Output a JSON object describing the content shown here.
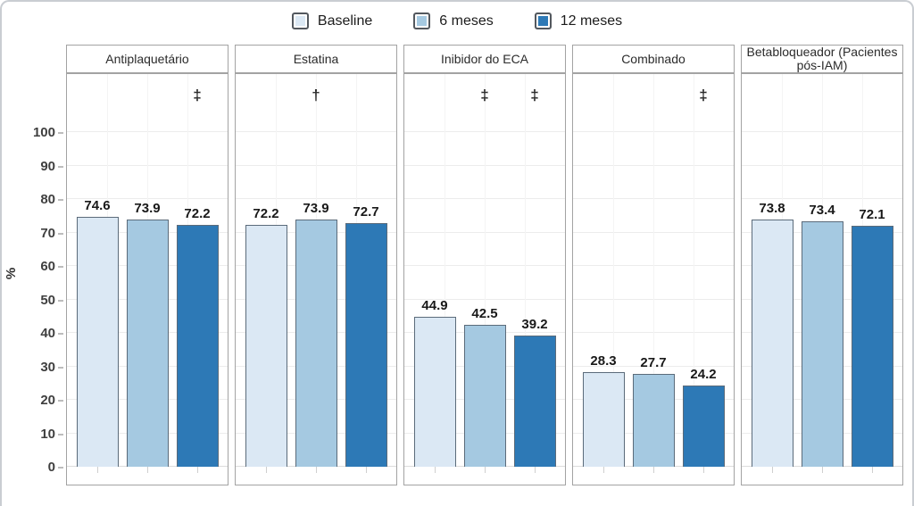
{
  "chart_data": {
    "type": "bar",
    "title": "",
    "ylabel": "%",
    "ylim": [
      0,
      100
    ],
    "yticks": [
      0,
      10,
      20,
      30,
      40,
      50,
      60,
      70,
      80,
      90,
      100
    ],
    "grid": true,
    "legend_position": "top-center",
    "series": [
      "Baseline",
      "6 meses",
      "12 meses"
    ],
    "series_colors": [
      "#dbe8f4",
      "#a5c9e1",
      "#2d79b6"
    ],
    "bar_border_color": "#5b6b7a",
    "panel_border_color": "#a3a3a3",
    "gridline_color": "#ececec",
    "panels": [
      {
        "label": "Antiplaquetário",
        "values": [
          74.6,
          73.9,
          72.2
        ],
        "significance": [
          "",
          "",
          "‡"
        ]
      },
      {
        "label": "Estatina",
        "values": [
          72.2,
          73.9,
          72.7
        ],
        "significance": [
          "",
          "†",
          ""
        ]
      },
      {
        "label": "Inibidor do ECA",
        "values": [
          44.9,
          42.5,
          39.2
        ],
        "significance": [
          "",
          "‡",
          "‡"
        ]
      },
      {
        "label": "Combinado",
        "values": [
          28.3,
          27.7,
          24.2
        ],
        "significance": [
          "",
          "",
          "‡"
        ]
      },
      {
        "label": "Betabloqueador (Pacientes pós-IAM)",
        "values": [
          73.8,
          73.4,
          72.1
        ],
        "significance": [
          "",
          "",
          ""
        ]
      }
    ]
  }
}
